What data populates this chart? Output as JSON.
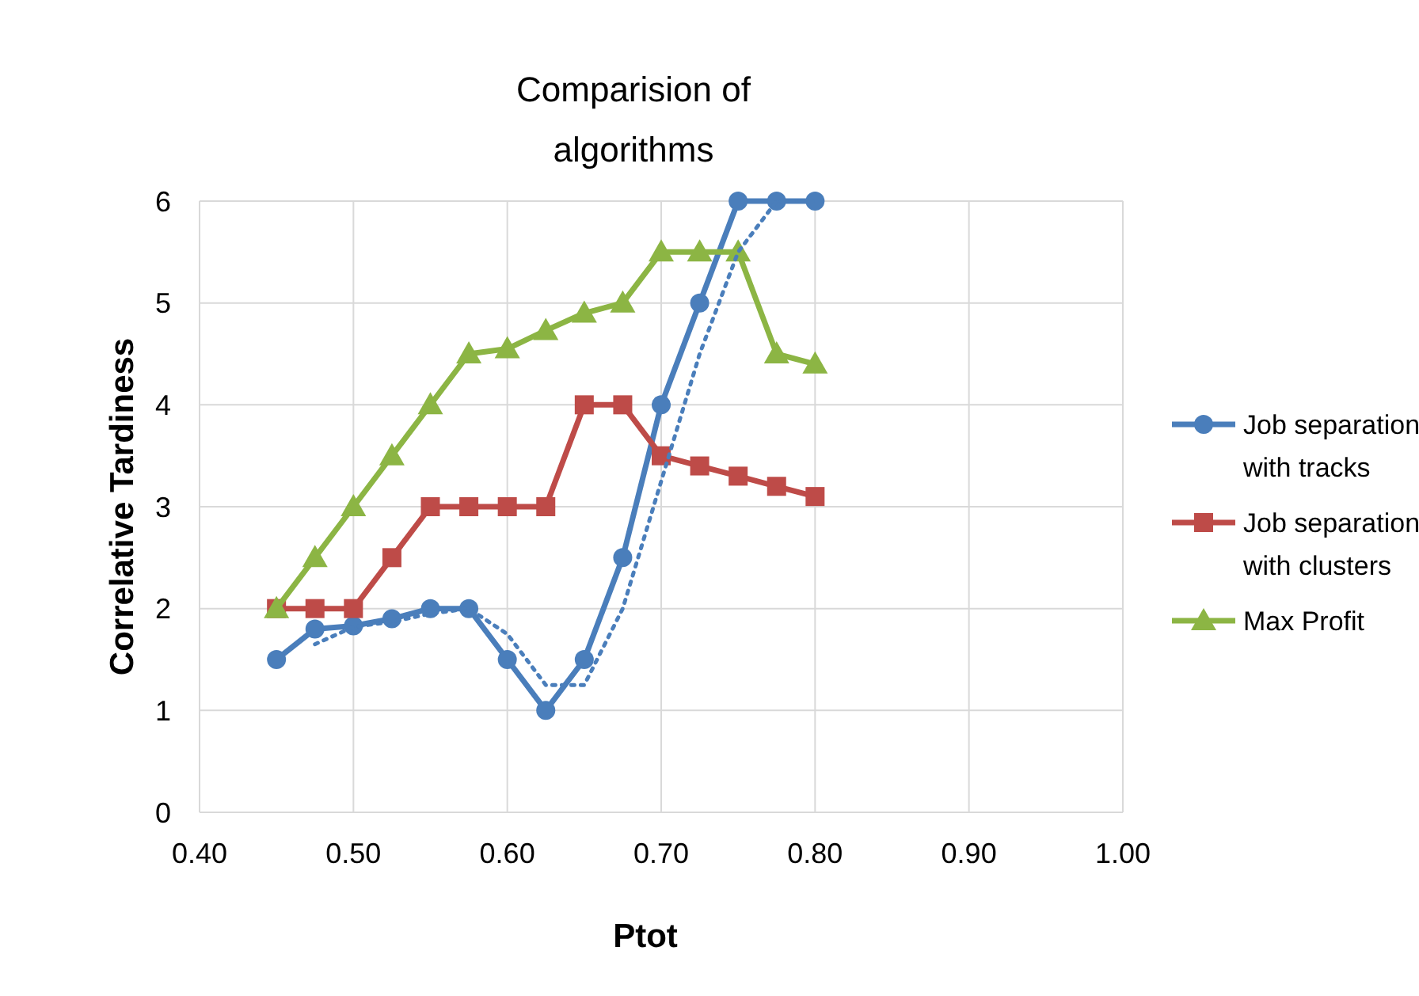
{
  "chart_data": {
    "type": "line",
    "title": "Comparision of algorithms",
    "xlabel": "Ptot",
    "ylabel": "Correlative Tardiness",
    "x": [
      0.45,
      0.475,
      0.5,
      0.525,
      0.55,
      0.575,
      0.6,
      0.625,
      0.65,
      0.675,
      0.7,
      0.725,
      0.75,
      0.775,
      0.8
    ],
    "series": [
      {
        "name": "Job separation with tracks",
        "color": "#4a7ebb",
        "marker": "circle",
        "values": [
          1.5,
          1.8,
          1.83,
          1.9,
          2,
          2,
          1.5,
          1,
          1.5,
          2.5,
          4,
          5,
          6,
          6,
          6
        ]
      },
      {
        "name": "Job separation with clusters",
        "color": "#be4b48",
        "marker": "square",
        "values": [
          2,
          2,
          2,
          2.5,
          3,
          3,
          3,
          3,
          4,
          4,
          3.5,
          3.4,
          3.3,
          3.2,
          3.1
        ]
      },
      {
        "name": "Max Profit",
        "color": "#8cb544",
        "marker": "triangle",
        "values": [
          2,
          2.5,
          3,
          3.5,
          4,
          4.5,
          4.55,
          4.73,
          4.9,
          5,
          5.5,
          5.5,
          5.5,
          4.5,
          4.4
        ]
      },
      {
        "color": "#4a7ebb",
        "marker": "none",
        "line_style": "dotted",
        "x": [
          0.475,
          0.5,
          0.525,
          0.55,
          0.575,
          0.6,
          0.625,
          0.65,
          0.675,
          0.7,
          0.725,
          0.75,
          0.775,
          0.8
        ],
        "values": [
          1.65,
          1.82,
          1.87,
          1.95,
          2,
          1.75,
          1.25,
          1.25,
          2,
          3.25,
          4.5,
          5.5,
          6,
          6
        ]
      }
    ],
    "xlim": [
      0.4,
      1.0
    ],
    "xticks": [
      {
        "value": 0.4,
        "label": "0.40"
      },
      {
        "value": 0.5,
        "label": "0.50"
      },
      {
        "value": 0.6,
        "label": "0.60"
      },
      {
        "value": 0.7,
        "label": "0.70"
      },
      {
        "value": 0.8,
        "label": "0.80"
      },
      {
        "value": 0.9,
        "label": "0.90"
      },
      {
        "value": 1.0,
        "label": "1.00"
      }
    ],
    "ylim": [
      0,
      6
    ],
    "yticks": [
      0,
      1,
      2,
      3,
      4,
      5,
      6
    ],
    "grid": true,
    "legend": "right"
  }
}
